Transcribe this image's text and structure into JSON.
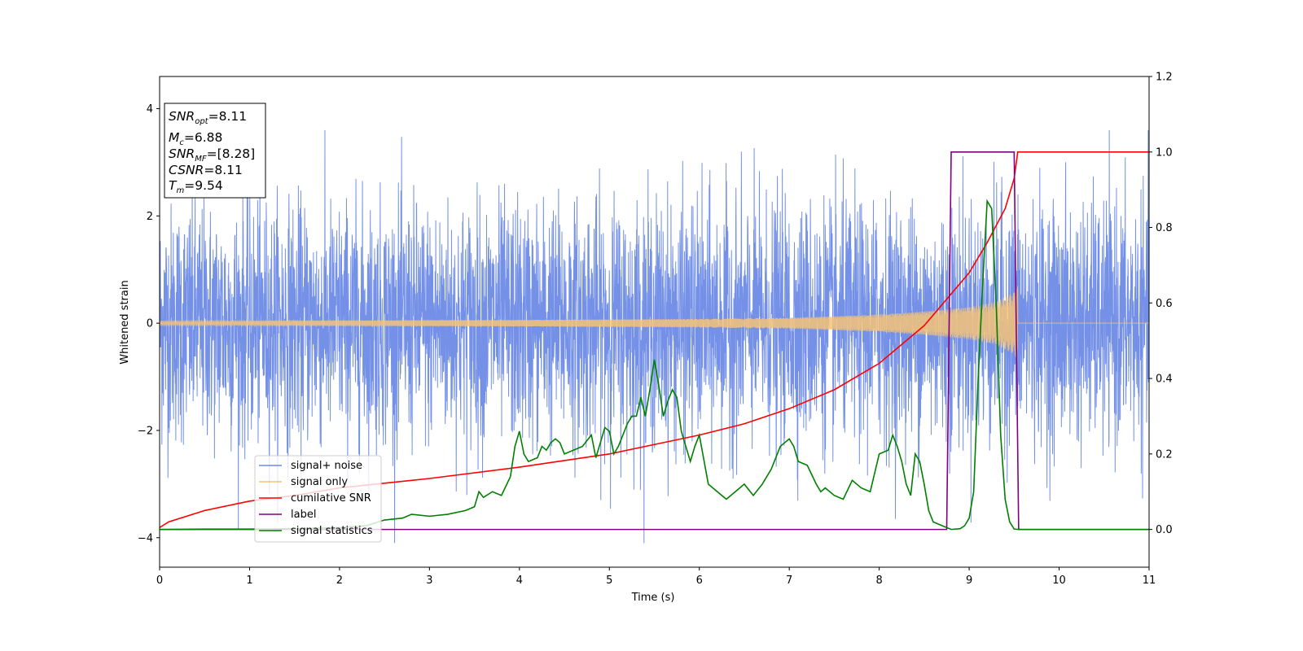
{
  "chart_data": {
    "type": "line",
    "xlabel": "Time (s)",
    "ylabel": "Whitened strain",
    "xlim": [
      0,
      11
    ],
    "ylim": [
      -4.55,
      4.6
    ],
    "y2lim": [
      -0.1,
      1.2
    ],
    "xticks": [
      "0",
      "1",
      "2",
      "3",
      "4",
      "5",
      "6",
      "7",
      "8",
      "9",
      "10",
      "11"
    ],
    "yticks": [
      "−4",
      "−2",
      "0",
      "2",
      "4"
    ],
    "y2ticks": [
      "0.0",
      "0.2",
      "0.4",
      "0.6",
      "0.8",
      "1.0",
      "1.2"
    ],
    "grid": false,
    "legend_position": "lower-left",
    "info_box": {
      "snr_opt": "8.11",
      "mc": "6.88",
      "snr_mf": "[8.28]",
      "csnr": "8.11",
      "tm": "9.54"
    },
    "series": [
      {
        "name": "signal+ noise",
        "axis": "left",
        "color": "#6d8be6",
        "description_of_values": "whitened noise, std ~1.1",
        "noise_std": 1.1
      },
      {
        "name": "signal only",
        "axis": "left",
        "color": "#f5c277",
        "envelope": {
          "t": [
            0,
            2,
            4,
            6,
            7,
            8,
            8.5,
            9,
            9.3,
            9.5,
            9.54
          ],
          "amp": [
            0.04,
            0.05,
            0.06,
            0.08,
            0.1,
            0.16,
            0.22,
            0.3,
            0.4,
            0.58,
            0.7
          ]
        },
        "end_time": 9.54
      },
      {
        "name": "cumilative SNR",
        "axis": "right",
        "color": "#ff0000",
        "x": [
          0,
          0.1,
          0.5,
          1,
          1.5,
          2,
          3,
          4,
          5,
          5.5,
          6,
          6.5,
          7,
          7.5,
          8,
          8.5,
          9,
          9.2,
          9.4,
          9.5,
          9.54,
          11
        ],
        "y": [
          0.005,
          0.02,
          0.05,
          0.075,
          0.09,
          0.11,
          0.135,
          0.165,
          0.2,
          0.225,
          0.25,
          0.28,
          0.32,
          0.37,
          0.44,
          0.54,
          0.68,
          0.76,
          0.85,
          0.93,
          1.0,
          1.0
        ]
      },
      {
        "name": "label",
        "axis": "right",
        "color": "#800080",
        "x": [
          0,
          8.75,
          8.8,
          9.5,
          9.55,
          11
        ],
        "y": [
          0,
          0,
          1,
          1,
          0,
          0
        ]
      },
      {
        "name": "signal statistics",
        "axis": "right",
        "color": "#008000",
        "x": [
          0,
          0.5,
          1,
          1.5,
          2,
          2.3,
          2.5,
          2.7,
          2.8,
          3,
          3.2,
          3.4,
          3.5,
          3.55,
          3.6,
          3.7,
          3.8,
          3.9,
          3.95,
          4,
          4.05,
          4.1,
          4.2,
          4.25,
          4.3,
          4.35,
          4.4,
          4.45,
          4.5,
          4.6,
          4.7,
          4.8,
          4.85,
          4.9,
          4.95,
          5,
          5.05,
          5.1,
          5.15,
          5.2,
          5.25,
          5.3,
          5.35,
          5.4,
          5.45,
          5.5,
          5.55,
          5.6,
          5.65,
          5.7,
          5.75,
          5.8,
          5.85,
          5.9,
          5.95,
          6,
          6.1,
          6.2,
          6.3,
          6.4,
          6.5,
          6.6,
          6.7,
          6.8,
          6.9,
          7,
          7.05,
          7.1,
          7.2,
          7.3,
          7.35,
          7.4,
          7.5,
          7.6,
          7.7,
          7.8,
          7.9,
          8,
          8.1,
          8.15,
          8.2,
          8.25,
          8.3,
          8.35,
          8.4,
          8.45,
          8.5,
          8.55,
          8.6,
          8.7,
          8.8,
          8.9,
          8.95,
          9,
          9.05,
          9.1,
          9.15,
          9.2,
          9.25,
          9.3,
          9.35,
          9.4,
          9.45,
          9.5,
          9.55,
          9.6,
          10,
          11
        ],
        "y": [
          0,
          0.001,
          0.001,
          0.002,
          0.005,
          0.01,
          0.025,
          0.03,
          0.04,
          0.035,
          0.04,
          0.05,
          0.06,
          0.1,
          0.085,
          0.1,
          0.09,
          0.14,
          0.22,
          0.26,
          0.2,
          0.18,
          0.19,
          0.22,
          0.21,
          0.23,
          0.24,
          0.23,
          0.2,
          0.21,
          0.22,
          0.25,
          0.19,
          0.23,
          0.27,
          0.26,
          0.2,
          0.22,
          0.25,
          0.28,
          0.3,
          0.3,
          0.35,
          0.3,
          0.37,
          0.45,
          0.38,
          0.3,
          0.34,
          0.37,
          0.35,
          0.26,
          0.22,
          0.18,
          0.22,
          0.25,
          0.12,
          0.1,
          0.08,
          0.1,
          0.12,
          0.09,
          0.12,
          0.16,
          0.22,
          0.24,
          0.22,
          0.18,
          0.17,
          0.12,
          0.1,
          0.11,
          0.09,
          0.08,
          0.13,
          0.11,
          0.1,
          0.2,
          0.21,
          0.25,
          0.22,
          0.18,
          0.12,
          0.09,
          0.2,
          0.18,
          0.12,
          0.05,
          0.02,
          0.01,
          0.0,
          0.002,
          0.01,
          0.03,
          0.1,
          0.4,
          0.65,
          0.87,
          0.85,
          0.6,
          0.25,
          0.08,
          0.02,
          0.001,
          0.0,
          0.0,
          0.0,
          0.0
        ]
      }
    ]
  }
}
